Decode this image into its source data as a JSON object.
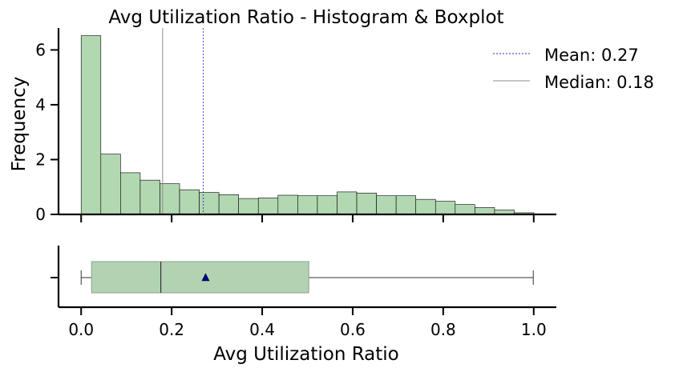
{
  "chart_data": {
    "type": "histogram",
    "title": "Avg Utilization Ratio - Histogram & Boxplot",
    "xlabel": "Avg Utilization Ratio",
    "ylabel": "Frequency",
    "xlim": [
      -0.05,
      1.05
    ],
    "ylim": [
      0,
      6.8
    ],
    "xticks": [
      "0.0",
      "0.2",
      "0.4",
      "0.6",
      "0.8",
      "1.0"
    ],
    "yticks": [
      "0",
      "2",
      "4",
      "6"
    ],
    "bins": {
      "start": 0.0,
      "width": 0.0435,
      "density": [
        6.52,
        2.2,
        1.52,
        1.25,
        1.12,
        0.9,
        0.8,
        0.72,
        0.58,
        0.6,
        0.7,
        0.68,
        0.68,
        0.82,
        0.78,
        0.68,
        0.68,
        0.55,
        0.48,
        0.36,
        0.25,
        0.16,
        0.06
      ]
    },
    "mean": 0.27,
    "median": 0.18,
    "legend": {
      "placement": "top-right",
      "entries": [
        {
          "label": "Mean: 0.27",
          "color": "#2b2bd6",
          "style": "dashed"
        },
        {
          "label": "Median: 0.18",
          "color": "#8c8c8c",
          "style": "solid"
        }
      ]
    },
    "boxplot": {
      "min": 0.0,
      "q1": 0.023,
      "median": 0.176,
      "q3": 0.503,
      "max": 0.999,
      "mean": 0.275
    },
    "colors": {
      "bar_fill": "#b2d8b2",
      "bar_edge": "#000000",
      "box_fill": "#b2d3b2",
      "box_edge": "#8f9f8f",
      "mean_marker": "#0000a0"
    }
  }
}
